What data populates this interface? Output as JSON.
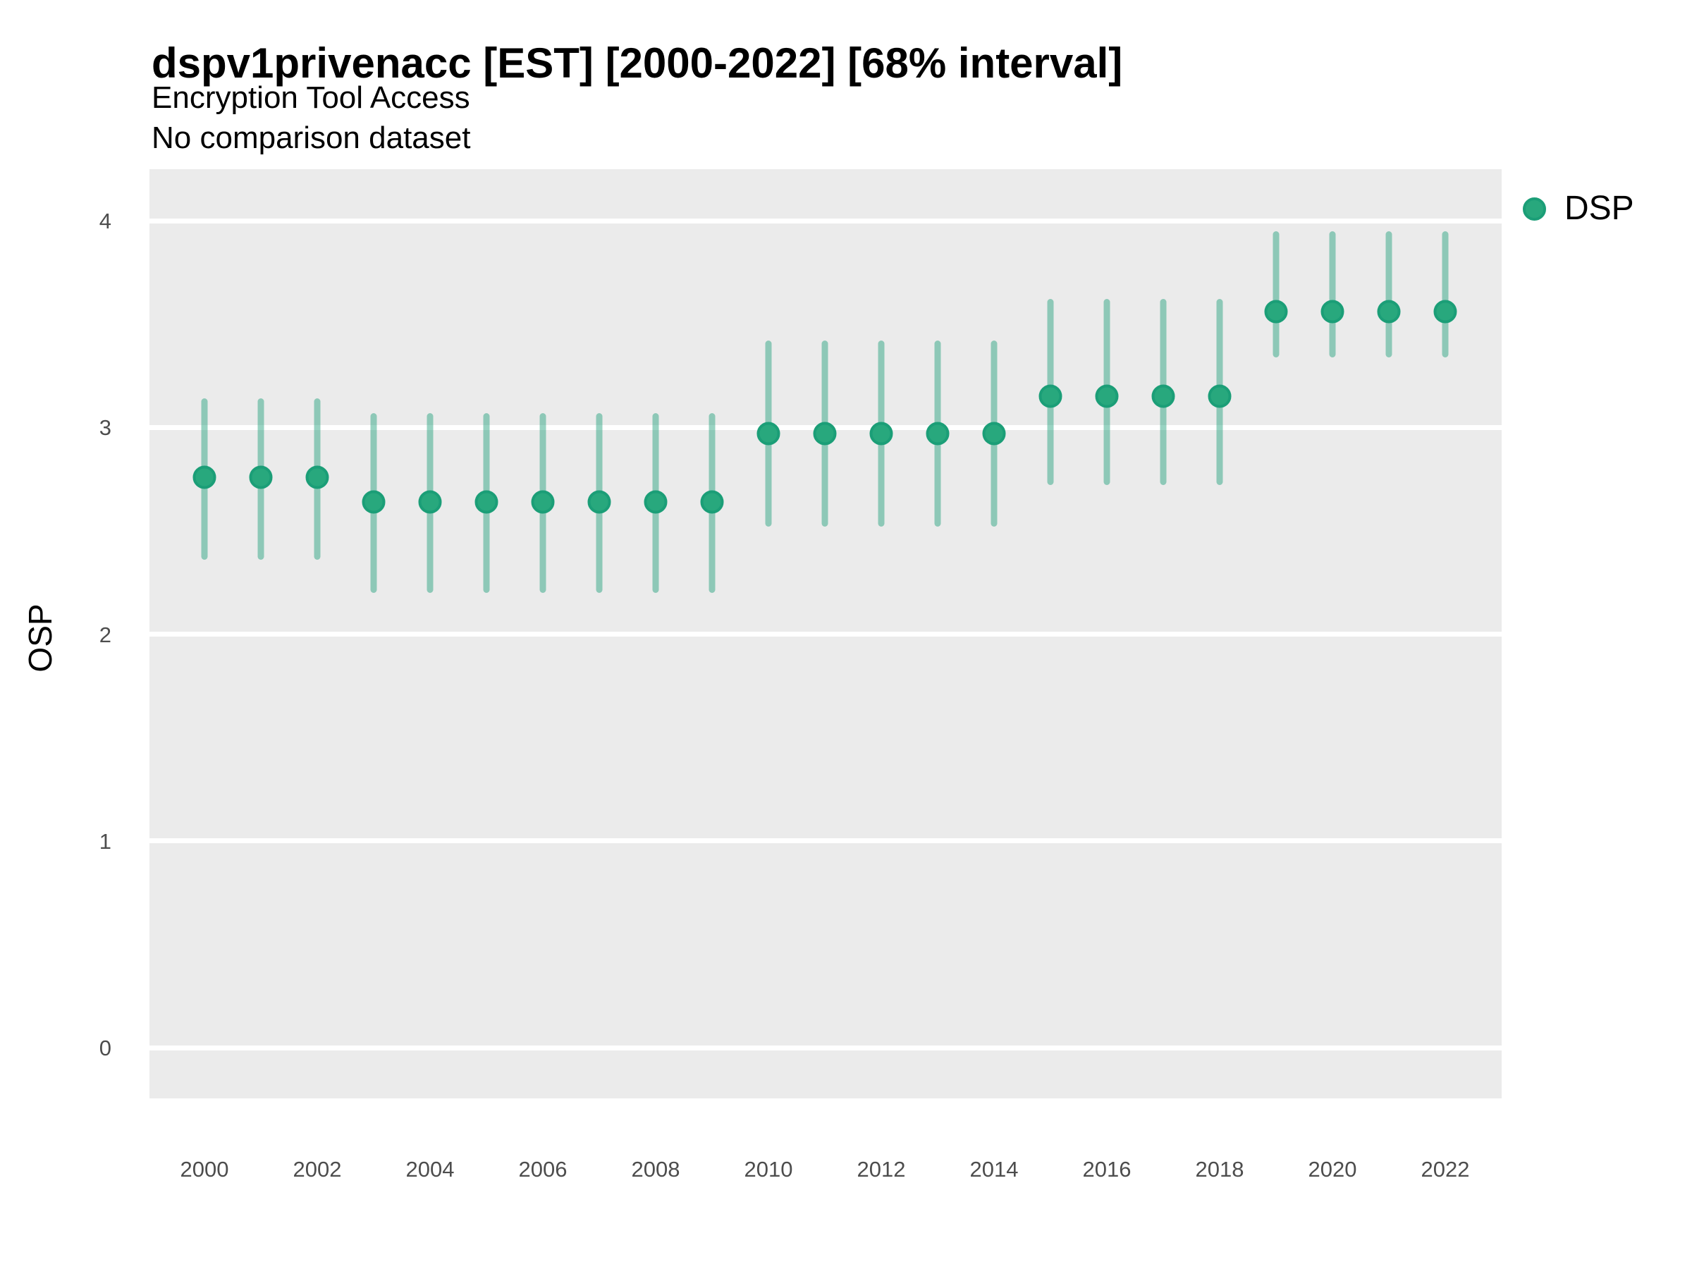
{
  "header": {
    "title": "dspv1privenacc [EST] [2000-2022] [68% interval]",
    "subtitle": "Encryption Tool Access",
    "comparison_note": "No comparison dataset"
  },
  "legend": {
    "items": [
      {
        "label": "DSP",
        "marker": "circle-icon",
        "color": "#28a87d"
      }
    ],
    "position": "right"
  },
  "axes": {
    "y_label": "OSP",
    "x_label": "",
    "y_ticks": [
      4,
      3,
      2,
      1,
      0
    ],
    "x_ticks": [
      2000,
      2002,
      2004,
      2006,
      2008,
      2010,
      2012,
      2014,
      2016,
      2018,
      2020,
      2022
    ]
  },
  "colors": {
    "panel_background": "#EBEBEB",
    "gridline": "#FFFFFF",
    "point_fill": "#28a87d",
    "point_stroke": "#1b9e77",
    "interval_line": "rgba(27,158,119,0.45)",
    "tick_text": "#4D4D4D",
    "text": "#000000"
  },
  "chart_data": {
    "type": "scatter",
    "subtype": "pointrange",
    "title": "dspv1privenacc [EST] [2000-2022] [68% interval]",
    "subtitle": "Encryption Tool Access",
    "note": "No comparison dataset",
    "xlabel": "",
    "ylabel": "OSP",
    "xlim": [
      1999,
      2023
    ],
    "ylim": [
      -0.25,
      4.25
    ],
    "grid": "horizontal-major-only",
    "legend_position": "right",
    "interval_level": "68%",
    "series": [
      {
        "name": "DSP",
        "points": [
          {
            "year": 2000,
            "mid": 2.76,
            "lo": 2.36,
            "hi": 3.14
          },
          {
            "year": 2001,
            "mid": 2.76,
            "lo": 2.36,
            "hi": 3.14
          },
          {
            "year": 2002,
            "mid": 2.76,
            "lo": 2.36,
            "hi": 3.14
          },
          {
            "year": 2003,
            "mid": 2.64,
            "lo": 2.2,
            "hi": 3.07
          },
          {
            "year": 2004,
            "mid": 2.64,
            "lo": 2.2,
            "hi": 3.07
          },
          {
            "year": 2005,
            "mid": 2.64,
            "lo": 2.2,
            "hi": 3.07
          },
          {
            "year": 2006,
            "mid": 2.64,
            "lo": 2.2,
            "hi": 3.07
          },
          {
            "year": 2007,
            "mid": 2.64,
            "lo": 2.2,
            "hi": 3.07
          },
          {
            "year": 2008,
            "mid": 2.64,
            "lo": 2.2,
            "hi": 3.07
          },
          {
            "year": 2009,
            "mid": 2.64,
            "lo": 2.2,
            "hi": 3.07
          },
          {
            "year": 2010,
            "mid": 2.97,
            "lo": 2.52,
            "hi": 3.42
          },
          {
            "year": 2011,
            "mid": 2.97,
            "lo": 2.52,
            "hi": 3.42
          },
          {
            "year": 2012,
            "mid": 2.97,
            "lo": 2.52,
            "hi": 3.42
          },
          {
            "year": 2013,
            "mid": 2.97,
            "lo": 2.52,
            "hi": 3.42
          },
          {
            "year": 2014,
            "mid": 2.97,
            "lo": 2.52,
            "hi": 3.42
          },
          {
            "year": 2015,
            "mid": 3.15,
            "lo": 2.72,
            "hi": 3.62
          },
          {
            "year": 2016,
            "mid": 3.15,
            "lo": 2.72,
            "hi": 3.62
          },
          {
            "year": 2017,
            "mid": 3.15,
            "lo": 2.72,
            "hi": 3.62
          },
          {
            "year": 2018,
            "mid": 3.15,
            "lo": 2.72,
            "hi": 3.62
          },
          {
            "year": 2019,
            "mid": 3.56,
            "lo": 3.34,
            "hi": 3.95
          },
          {
            "year": 2020,
            "mid": 3.56,
            "lo": 3.34,
            "hi": 3.95
          },
          {
            "year": 2021,
            "mid": 3.56,
            "lo": 3.34,
            "hi": 3.95
          },
          {
            "year": 2022,
            "mid": 3.56,
            "lo": 3.34,
            "hi": 3.95
          }
        ]
      }
    ]
  }
}
